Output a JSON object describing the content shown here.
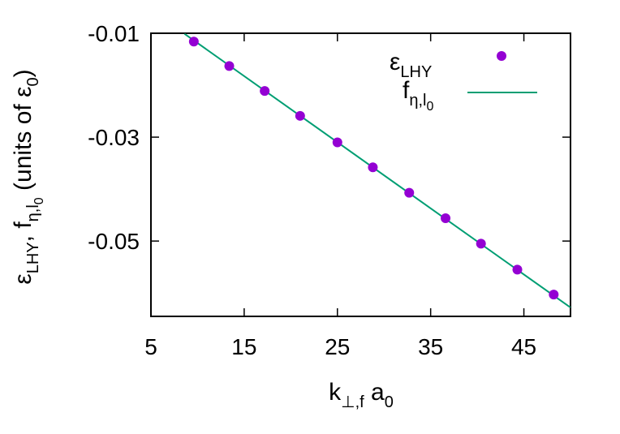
{
  "chart_data": {
    "type": "scatter",
    "xlabel": {
      "main": "k",
      "sub": "⊥,f",
      "mid": " a",
      "sub2": "0"
    },
    "ylabel": {
      "eps": "ε",
      "eps_sub": "LHY",
      "sep": ", f",
      "f_sub": "η,l",
      "f_subsub": "0",
      "units_pre": " (units of ε",
      "units_sub": "0",
      "units_post": ")"
    },
    "xlim": [
      5,
      50
    ],
    "ylim": [
      -0.0645,
      -0.01
    ],
    "xticks": [
      5,
      15,
      25,
      35,
      45
    ],
    "xtick_labels": [
      "5",
      "15",
      "25",
      "35",
      "45"
    ],
    "yticks": [
      -0.01,
      -0.03,
      -0.05
    ],
    "ytick_labels": [
      "-0.01",
      "-0.03",
      "-0.05"
    ],
    "grid": false,
    "legend_position": "top-right",
    "series": [
      {
        "name": {
          "main": "ε",
          "sub": "LHY"
        },
        "kind": "points",
        "color": "#9400d3",
        "points": [
          [
            9.6,
            -0.0116
          ],
          [
            13.4,
            -0.0163
          ],
          [
            17.2,
            -0.0211
          ],
          [
            21.0,
            -0.0259
          ],
          [
            25.0,
            -0.031
          ],
          [
            28.8,
            -0.0358
          ],
          [
            32.7,
            -0.0407
          ],
          [
            36.6,
            -0.0456
          ],
          [
            40.4,
            -0.0505
          ],
          [
            44.3,
            -0.0555
          ],
          [
            48.2,
            -0.0603
          ]
        ]
      },
      {
        "name": {
          "main": "f",
          "sub": "η,l",
          "subsub": "0"
        },
        "kind": "line",
        "color": "#009e73",
        "points": [
          [
            8.6,
            -0.0101
          ],
          [
            50,
            -0.0628
          ]
        ]
      }
    ]
  }
}
